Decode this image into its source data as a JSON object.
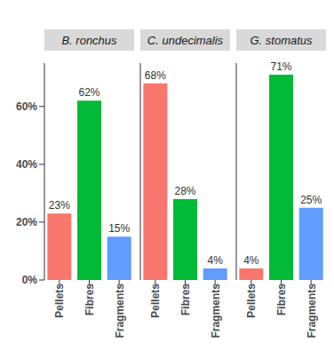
{
  "chart_data": [
    {
      "type": "bar",
      "title": "B. ronchus",
      "categories": [
        "Pellets",
        "Fibres",
        "Fragments"
      ],
      "values": [
        23,
        62,
        15
      ],
      "value_labels": [
        "23%",
        "62%",
        "15%"
      ],
      "colors": [
        "#F8766D",
        "#00BA38",
        "#619CFF"
      ],
      "ylim": [
        0,
        75
      ],
      "yticks": [
        {
          "value": 0,
          "label": "0%"
        },
        {
          "value": 20,
          "label": "20%"
        },
        {
          "value": 40,
          "label": "40%"
        },
        {
          "value": 60,
          "label": "60%"
        }
      ],
      "data_labels": true
    },
    {
      "type": "bar",
      "title": "C. undecimalis",
      "categories": [
        "Pellets",
        "Fibres",
        "Fragments"
      ],
      "values": [
        68,
        28,
        4
      ],
      "value_labels": [
        "68%",
        "28%",
        "4%"
      ],
      "colors": [
        "#F8766D",
        "#00BA38",
        "#619CFF"
      ],
      "ylim": [
        0,
        75
      ],
      "yticks": [
        {
          "value": 0,
          "label": "0%"
        },
        {
          "value": 20,
          "label": "20%"
        },
        {
          "value": 40,
          "label": "40%"
        },
        {
          "value": 60,
          "label": "60%"
        }
      ],
      "data_labels": true,
      "tick_labels": "x"
    },
    {
      "type": "bar",
      "title": "G. stomatus",
      "categories": [
        "Pellets",
        "Fibres",
        "Fragments"
      ],
      "values": [
        4,
        71,
        25
      ],
      "value_labels": [
        "4%",
        "71%",
        "25%"
      ],
      "colors": [
        "#F8766D",
        "#00BA38",
        "#619CFF"
      ],
      "ylim": [
        0,
        75
      ],
      "yticks": [
        {
          "value": 0,
          "label": "0%"
        },
        {
          "value": 20,
          "label": "20%"
        },
        {
          "value": 40,
          "label": "40%"
        },
        {
          "value": 60,
          "label": "60%"
        }
      ],
      "data_labels": true,
      "tick_labels": "x"
    }
  ]
}
